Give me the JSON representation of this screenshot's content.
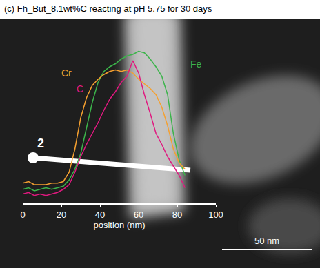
{
  "chart_data": {
    "type": "line",
    "title": "(c) Fh_But_8.1wt%C reacting at pH 5.75 for 30 days",
    "x_label": "position (nm)",
    "x": [
      0,
      3,
      6,
      9,
      12,
      15,
      18,
      21,
      24,
      27,
      30,
      33,
      36,
      39,
      42,
      45,
      48,
      51,
      54,
      57,
      60,
      63,
      66,
      69,
      72,
      75,
      78,
      81,
      84
    ],
    "series": [
      {
        "name": "Fe",
        "color": "#3cb44b",
        "values": [
          9,
          10,
          8,
          9,
          10,
          9,
          10,
          11,
          15,
          22,
          32,
          48,
          65,
          78,
          85,
          88,
          90,
          93,
          95,
          96,
          98,
          97,
          93,
          88,
          82,
          70,
          45,
          28,
          18
        ]
      },
      {
        "name": "Cr",
        "color": "#f5a030",
        "values": [
          13,
          14,
          12,
          12,
          12,
          13,
          13,
          14,
          20,
          35,
          55,
          68,
          76,
          80,
          83,
          85,
          86,
          85,
          86,
          84,
          80,
          77,
          74,
          70,
          62,
          50,
          35,
          26,
          22
        ]
      },
      {
        "name": "C",
        "color": "#e0197f",
        "values": [
          6,
          7,
          5,
          6,
          5,
          6,
          7,
          9,
          12,
          20,
          30,
          38,
          45,
          52,
          60,
          67,
          72,
          78,
          82,
          92,
          84,
          70,
          58,
          45,
          38,
          30,
          24,
          18,
          10
        ]
      }
    ],
    "xlim": [
      0,
      100
    ],
    "xticks": [
      0,
      20,
      40,
      60,
      80,
      100
    ],
    "ylim": [
      0,
      100
    ],
    "tick_labels": "x",
    "grid": false,
    "annotations": [
      "2",
      "50 nm"
    ]
  }
}
